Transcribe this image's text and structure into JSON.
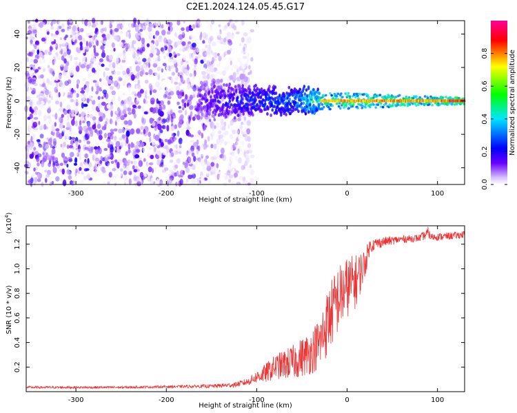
{
  "title": "C2E1.2024.124.05.45.G17",
  "chart_data": [
    {
      "type": "heatmap",
      "xlabel": "Height of straight line (km)",
      "ylabel": "Frequency (Hz)",
      "xlim": [
        -355,
        130
      ],
      "ylim": [
        -50,
        48
      ],
      "xticks": [
        -300,
        -200,
        -100,
        0,
        100
      ],
      "yticks": [
        -40,
        -20,
        0,
        20,
        40
      ],
      "colorbar": {
        "label": "Normalized spectral amplitude",
        "range": [
          0,
          1
        ],
        "ticks": [
          0.0,
          0.2,
          0.4,
          0.6,
          0.8
        ],
        "tick_labels": [
          "0.0",
          "0.2",
          "0.4",
          "0.6",
          "0.8"
        ],
        "colormap": [
          "#ffffff",
          "#6a00ff",
          "#0000ff",
          "#00e5ff",
          "#00ff00",
          "#ffff00",
          "#ff0000",
          "#ff00aa"
        ]
      },
      "structure": {
        "noise_region_x": [
          -355,
          -125
        ],
        "noise_amplitude": 0.12,
        "signal_start_x": -165,
        "signal_band_halfwidth_hz": [
          8,
          2
        ],
        "signal_amplitude_profile": [
          {
            "x": -165,
            "a": 0.15
          },
          {
            "x": -120,
            "a": 0.25
          },
          {
            "x": -60,
            "a": 0.35
          },
          {
            "x": -30,
            "a": 0.55
          },
          {
            "x": 0,
            "a": 0.6
          },
          {
            "x": 100,
            "a": 0.6
          },
          {
            "x": 130,
            "a": 0.7
          }
        ]
      }
    },
    {
      "type": "line",
      "xlabel": "Height of straight line (km)",
      "ylabel": "SNR (10 * v/v)",
      "y_multiplier": "(x10",
      "y_multiplier_exp": "4",
      "y_multiplier_close": ")",
      "xlim": [
        -355,
        130
      ],
      "ylim": [
        0,
        1.35
      ],
      "xticks": [
        -300,
        -200,
        -100,
        0,
        100
      ],
      "yticks": [
        0.2,
        0.4,
        0.6,
        0.8,
        1.0,
        1.2
      ],
      "ytick_labels": [
        "0.2",
        "0.4",
        "0.6",
        "0.8",
        "1.0",
        "1.2"
      ],
      "color": "#ee3333",
      "series": [
        {
          "x": [
            -355,
            -300,
            -250,
            -200,
            -150,
            -125,
            -110,
            -100,
            -90,
            -80,
            -70,
            -60,
            -50,
            -40,
            -30,
            -25,
            -20,
            -10,
            0,
            10,
            20,
            25,
            30,
            40,
            60,
            80,
            88,
            90,
            92,
            100,
            120,
            130
          ],
          "y": [
            0.035,
            0.035,
            0.035,
            0.04,
            0.045,
            0.055,
            0.08,
            0.12,
            0.15,
            0.2,
            0.22,
            0.24,
            0.28,
            0.32,
            0.4,
            0.5,
            0.6,
            0.75,
            0.85,
            0.9,
            1.05,
            1.18,
            1.2,
            1.22,
            1.24,
            1.25,
            1.28,
            1.3,
            1.26,
            1.26,
            1.27,
            1.28
          ],
          "noise": [
            0.01,
            0.01,
            0.01,
            0.01,
            0.015,
            0.02,
            0.03,
            0.05,
            0.08,
            0.1,
            0.12,
            0.14,
            0.16,
            0.18,
            0.22,
            0.26,
            0.28,
            0.28,
            0.25,
            0.22,
            0.12,
            0.06,
            0.05,
            0.04,
            0.03,
            0.03,
            0.04,
            0.05,
            0.03,
            0.03,
            0.03,
            0.03
          ]
        }
      ]
    }
  ]
}
